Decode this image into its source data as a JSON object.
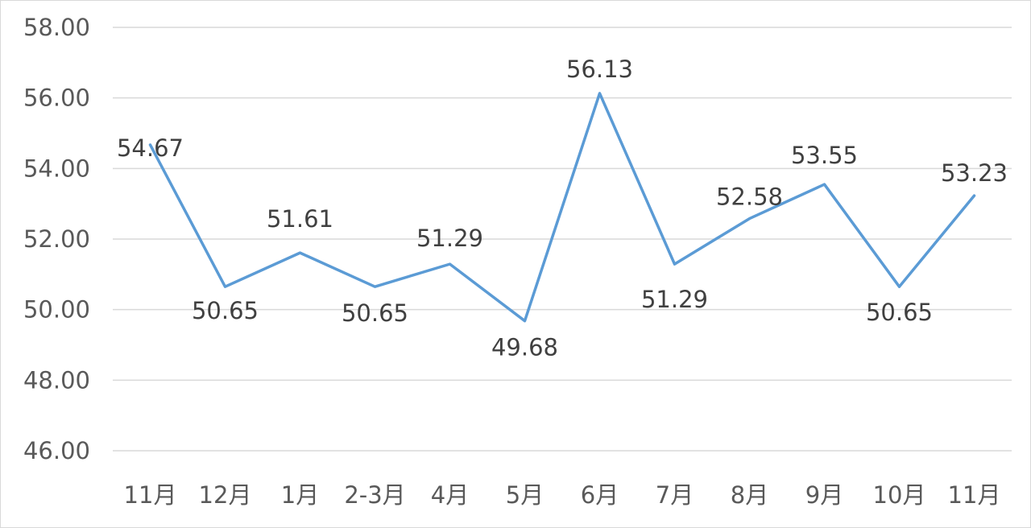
{
  "chart_data": {
    "type": "line",
    "categories": [
      "11月",
      "12月",
      "1月",
      "2-3月",
      "4月",
      "5月",
      "6月",
      "7月",
      "8月",
      "9月",
      "10月",
      "11月"
    ],
    "series": [
      {
        "values": [
          54.67,
          50.65,
          51.61,
          50.65,
          51.29,
          49.68,
          56.13,
          51.29,
          52.58,
          53.55,
          50.65,
          53.23
        ]
      }
    ],
    "data_labels": [
      "54.67",
      "50.65",
      "51.61",
      "50.65",
      "51.29",
      "49.68",
      "56.13",
      "51.29",
      "52.58",
      "53.55",
      "50.65",
      "53.23"
    ],
    "y_ticks": [
      "46.00",
      "48.00",
      "50.00",
      "52.00",
      "54.00",
      "56.00",
      "58.00"
    ],
    "ylim": [
      46,
      58
    ],
    "grid": true,
    "legend": "none",
    "line_color": "#5b9bd5",
    "title": "",
    "xlabel": "",
    "ylabel": ""
  }
}
